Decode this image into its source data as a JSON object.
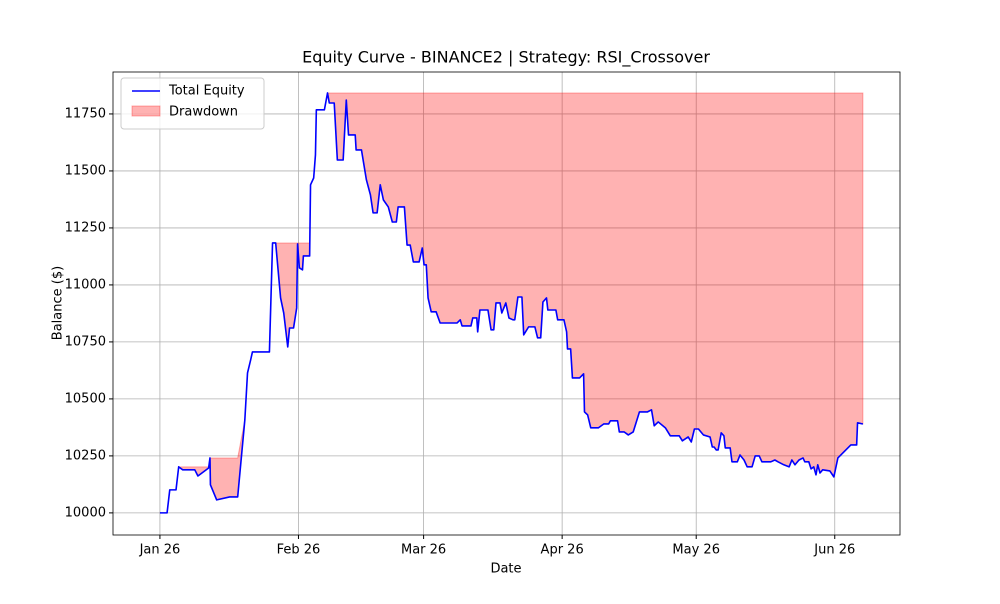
{
  "chart_data": {
    "type": "line",
    "title": "Equity Curve - BINANCE2 | Strategy: RSI_Crossover",
    "x_label": "Date",
    "y_label": "Balance ($)",
    "x": [
      0,
      1.6,
      2.2,
      3.6,
      4.2,
      5.1,
      7.8,
      8.5,
      10.9,
      11.2,
      11.3,
      12.7,
      15.6,
      17.4,
      19.0,
      19.6,
      20.3,
      20.7,
      24.5,
      25.2,
      25.9,
      27.0,
      27.7,
      28.6,
      29.0,
      29.9,
      30.6,
      30.8,
      31.2,
      31.9,
      32.1,
      33.5,
      33.7,
      34.4,
      34.8,
      35.0,
      36.8,
      37.5,
      37.9,
      39.0,
      39.7,
      41.0,
      41.7,
      42.2,
      43.7,
      43.9,
      45.1,
      46.2,
      47.1,
      47.7,
      48.6,
      49.3,
      50.0,
      51.1,
      52.0,
      52.9,
      53.3,
      54.7,
      55.3,
      56.0,
      56.7,
      58.0,
      58.7,
      59.1,
      59.6,
      60.0,
      60.7,
      61.8,
      62.7,
      66.5,
      67.2,
      67.6,
      69.6,
      70.0,
      70.9,
      71.1,
      71.6,
      73.4,
      74.1,
      74.7,
      75.2,
      76.1,
      76.5,
      77.4,
      78.1,
      79.0,
      79.4,
      80.1,
      81.0,
      81.4,
      82.5,
      83.9,
      84.5,
      85.2,
      85.7,
      86.5,
      86.8,
      88.6,
      89.0,
      90.4,
      91.0,
      91.2,
      91.9,
      92.3,
      93.9,
      94.8,
      95.0,
      95.7,
      96.4,
      98.1,
      99.3,
      100.4,
      100.8,
      102.4,
      102.8,
      103.9,
      104.8,
      105.9,
      107.3,
      109.1,
      110.0,
      110.6,
      111.5,
      113.1,
      114.2,
      116.2,
      116.9,
      118.2,
      118.9,
      119.6,
      120.5,
      121.6,
      123.1,
      123.6,
      124.0,
      124.5,
      124.9,
      125.6,
      126.2,
      126.5,
      127.6,
      128.0,
      129.2,
      129.8,
      130.7,
      131.4,
      132.5,
      133.2,
      134.1,
      134.7,
      136.7,
      137.6,
      138.3,
      139.6,
      140.8,
      141.4,
      142.1,
      143.0,
      143.9,
      144.3,
      145.2,
      145.7,
      146.3,
      146.8,
      147.2,
      147.7,
      148.3,
      149.9,
      150.8,
      151.7,
      154.6,
      155.9,
      156.1,
      157.3
    ],
    "series": [
      {
        "name": "Total Equity",
        "color": "#0000ff",
        "values": [
          10000,
          10000,
          10101,
          10101,
          10202,
          10189,
          10189,
          10162,
          10197,
          10241,
          10123,
          10057,
          10070,
          10070,
          10408,
          10614,
          10671,
          10706,
          10706,
          11184,
          11184,
          10943,
          10877,
          10728,
          10811,
          10811,
          10899,
          11180,
          11075,
          11066,
          11127,
          11127,
          11439,
          11469,
          11570,
          11768,
          11768,
          11842,
          11798,
          11798,
          11548,
          11548,
          11811,
          11658,
          11658,
          11592,
          11592,
          11461,
          11395,
          11316,
          11316,
          11439,
          11373,
          11342,
          11276,
          11276,
          11342,
          11342,
          11175,
          11175,
          11101,
          11101,
          11162,
          11088,
          11088,
          10943,
          10882,
          10882,
          10833,
          10833,
          10847,
          10820,
          10820,
          10855,
          10855,
          10794,
          10890,
          10890,
          10803,
          10803,
          10921,
          10921,
          10877,
          10921,
          10855,
          10847,
          10847,
          10947,
          10947,
          10781,
          10816,
          10816,
          10768,
          10768,
          10925,
          10943,
          10890,
          10890,
          10847,
          10847,
          10794,
          10719,
          10719,
          10592,
          10592,
          10610,
          10443,
          10430,
          10373,
          10373,
          10390,
          10390,
          10404,
          10404,
          10355,
          10355,
          10342,
          10355,
          10443,
          10443,
          10452,
          10382,
          10399,
          10373,
          10338,
          10338,
          10316,
          10333,
          10311,
          10368,
          10368,
          10342,
          10333,
          10289,
          10289,
          10276,
          10276,
          10351,
          10338,
          10285,
          10285,
          10224,
          10224,
          10254,
          10232,
          10202,
          10202,
          10250,
          10250,
          10224,
          10224,
          10232,
          10224,
          10211,
          10202,
          10232,
          10211,
          10232,
          10241,
          10224,
          10224,
          10193,
          10202,
          10167,
          10211,
          10175,
          10189,
          10184,
          10158,
          10241,
          10298,
          10298,
          10395,
          10390
        ]
      }
    ],
    "drawdown": {
      "name": "Drawdown",
      "color": "#ff0000",
      "opacity": 0.3
    },
    "xlim": [
      -10.5,
      165.6
    ],
    "xticks": [
      {
        "value": 0,
        "label": "Jan 26"
      },
      {
        "value": 31,
        "label": "Feb 26"
      },
      {
        "value": 59,
        "label": "Mar 26"
      },
      {
        "value": 90,
        "label": "Apr 26"
      },
      {
        "value": 120,
        "label": "May 26"
      },
      {
        "value": 151,
        "label": "Jun 26"
      }
    ],
    "ylim": [
      9903,
      11934
    ],
    "yticks": [
      10000,
      10250,
      10500,
      10750,
      11000,
      11250,
      11500,
      11750
    ],
    "grid": true,
    "legend": "upper-left"
  }
}
